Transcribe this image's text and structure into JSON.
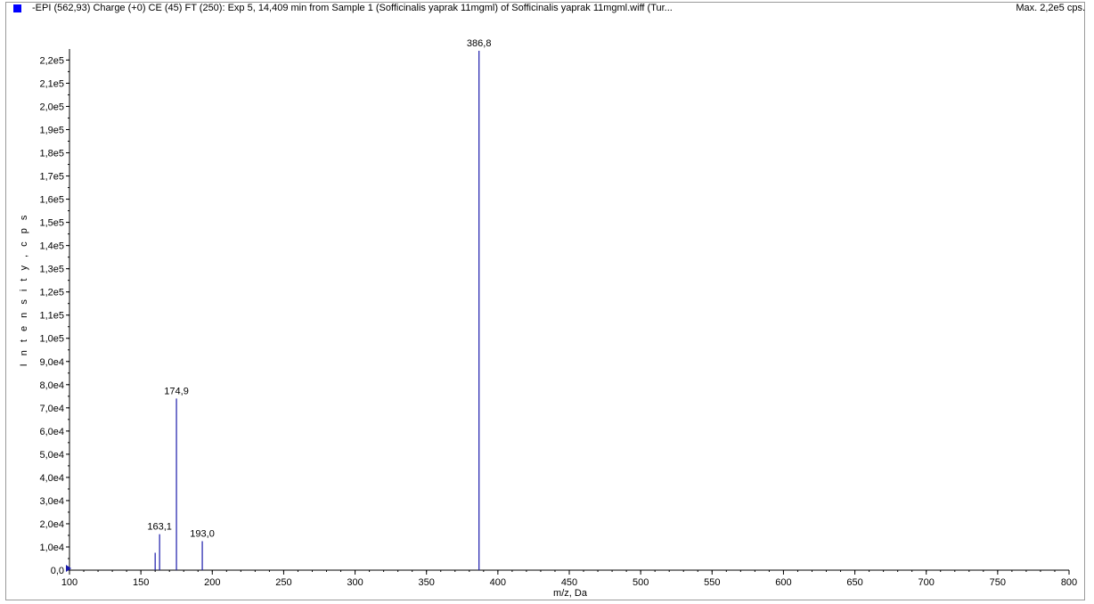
{
  "header": {
    "title": "-EPI (562,93) Charge (+0) CE (45) FT (250): Exp 5, 14,409 min from Sample 1 (Sofficinalis yaprak 11mgml) of Sofficinalis yaprak 11mgml.wiff (Tur...",
    "max_label": "Max. 2,2e5 cps."
  },
  "colors": {
    "series": "#1a1aaa",
    "swatch": "#0000ff",
    "axis": "#000000"
  },
  "chart_data": {
    "type": "bar",
    "title": "",
    "xlabel": "m/z, Da",
    "ylabel": "I n t e n s i t y ,   c p s",
    "xlim": [
      100,
      800
    ],
    "ylim": [
      0,
      224000
    ],
    "x_ticks": [
      100,
      150,
      200,
      250,
      300,
      350,
      400,
      450,
      500,
      550,
      600,
      650,
      700,
      750,
      800
    ],
    "x_tick_labels": [
      "100",
      "150",
      "200",
      "250",
      "300",
      "350",
      "400",
      "450",
      "500",
      "550",
      "600",
      "650",
      "700",
      "750",
      "800"
    ],
    "y_ticks": [
      0,
      10000,
      20000,
      30000,
      40000,
      50000,
      60000,
      70000,
      80000,
      90000,
      100000,
      110000,
      120000,
      130000,
      140000,
      150000,
      160000,
      170000,
      180000,
      190000,
      200000,
      210000,
      220000
    ],
    "y_tick_labels": [
      "0,0",
      "1,0e4",
      "2,0e4",
      "3,0e4",
      "4,0e4",
      "5,0e4",
      "6,0e4",
      "7,0e4",
      "8,0e4",
      "9,0e4",
      "1,0e5",
      "1,1e5",
      "1,2e5",
      "1,3e5",
      "1,4e5",
      "1,5e5",
      "1,6e5",
      "1,7e5",
      "1,8e5",
      "1,9e5",
      "2,0e5",
      "2,1e5",
      "2,2e5"
    ],
    "peaks": [
      {
        "mz": 160.0,
        "intensity": 7500,
        "label": ""
      },
      {
        "mz": 163.1,
        "intensity": 15500,
        "label": "163,1"
      },
      {
        "mz": 174.9,
        "intensity": 74000,
        "label": "174,9"
      },
      {
        "mz": 193.0,
        "intensity": 12500,
        "label": "193,0"
      },
      {
        "mz": 386.8,
        "intensity": 224000,
        "label": "386,8"
      }
    ]
  }
}
